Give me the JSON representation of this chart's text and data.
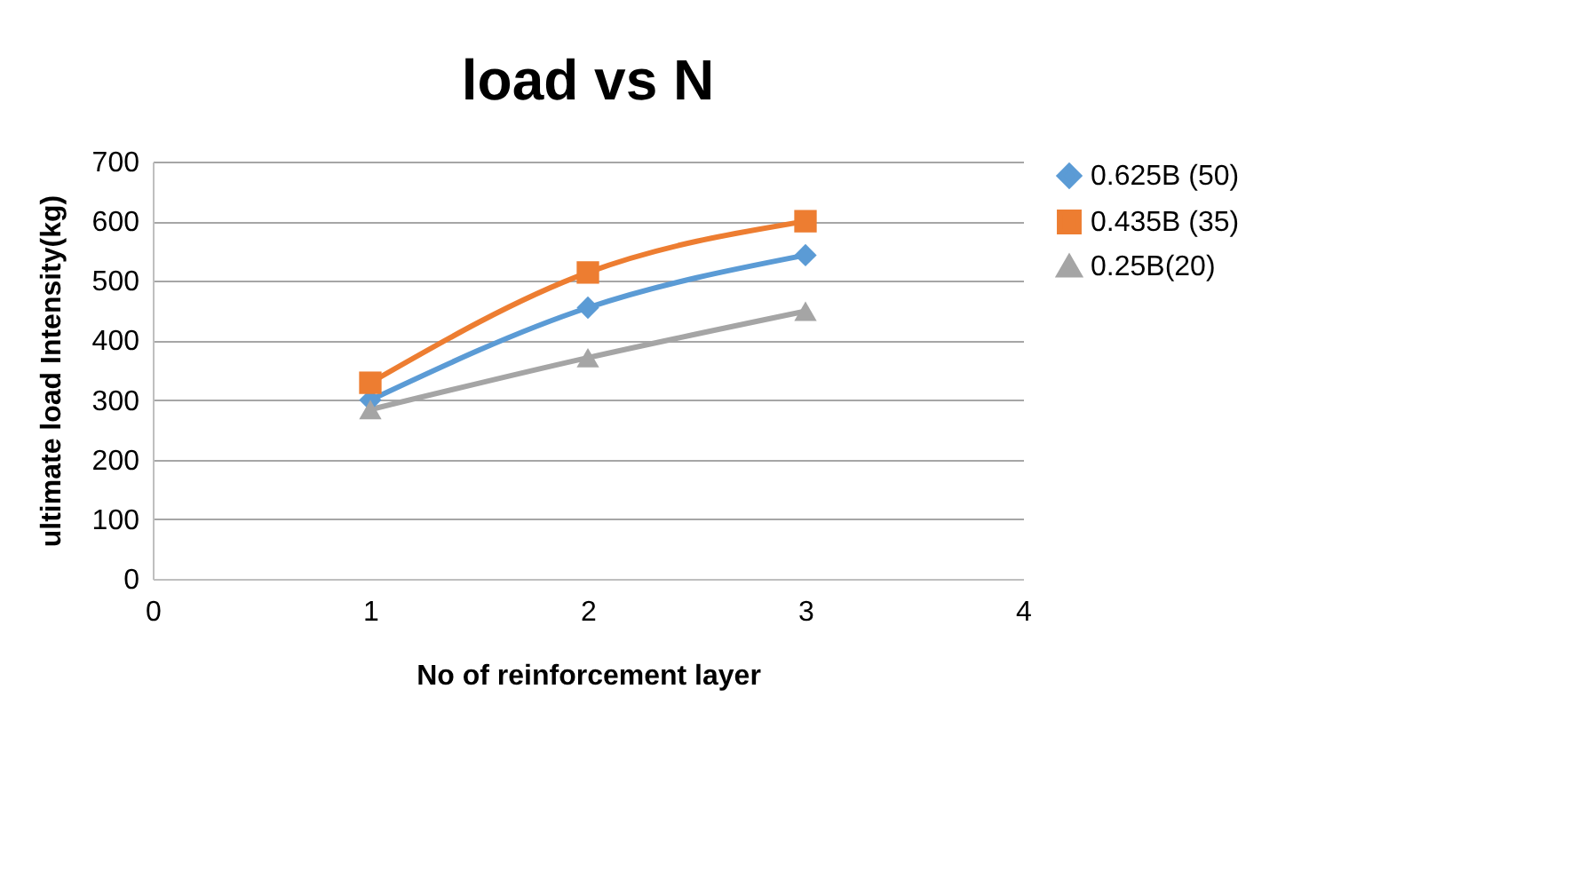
{
  "chart_data": {
    "type": "line",
    "title": "load vs N",
    "xlabel": "No of reinforcement layer",
    "ylabel": "ultimate load Intensity(kg)",
    "x": [
      1,
      2,
      3
    ],
    "xlim": [
      0,
      4
    ],
    "xticks": [
      0,
      1,
      2,
      3,
      4
    ],
    "ylim": [
      0,
      700
    ],
    "yticks": [
      0,
      100,
      200,
      300,
      400,
      500,
      600,
      700
    ],
    "grid": "y",
    "legend": "right",
    "series": [
      {
        "name": "0.625B (50)",
        "color": "#5b9bd5",
        "marker": "diamond",
        "values": [
          300,
          455,
          543
        ]
      },
      {
        "name": "0.435B (35)",
        "color": "#ed7d31",
        "marker": "square",
        "values": [
          329,
          514,
          600
        ]
      },
      {
        "name": "0.25B(20)",
        "color": "#a5a5a5",
        "marker": "triangle",
        "values": [
          284,
          371,
          449
        ]
      }
    ]
  }
}
